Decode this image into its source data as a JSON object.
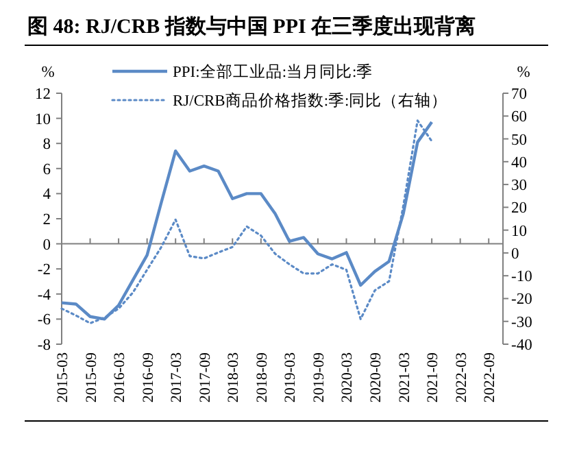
{
  "chart_data": {
    "type": "line",
    "title": "图 48: RJ/CRB 指数与中国 PPI 在三季度出现背离",
    "ylabel": "%",
    "y2label": "%",
    "categories": [
      "2015-03",
      null,
      "2015-09",
      null,
      "2016-03",
      null,
      "2016-09",
      null,
      "2017-03",
      null,
      "2017-09",
      null,
      "2018-03",
      null,
      "2018-09",
      null,
      "2019-03",
      null,
      "2019-09",
      null,
      "2020-03",
      null,
      "2020-09",
      null,
      "2021-03",
      null,
      "2021-09",
      null,
      "2022-03",
      null,
      "2022-09",
      null
    ],
    "series": [
      {
        "name": "PPI:全部工业品:当月同比:季",
        "color": "#5b8ac6",
        "line_style": "solid",
        "values": [
          -4.7,
          -4.8,
          -5.8,
          -6.0,
          -4.9,
          -2.9,
          -0.9,
          3.3,
          7.4,
          5.8,
          6.2,
          5.8,
          3.6,
          4.0,
          4.0,
          2.4,
          0.2,
          0.5,
          -0.8,
          -1.2,
          -0.7,
          -3.3,
          -2.2,
          -1.4,
          2.4,
          8.1,
          9.7,
          null,
          null,
          null,
          null,
          null
        ]
      },
      {
        "name": "RJ/CRB商品价格指数:季:同比（右轴）",
        "color": "#5b8ac6",
        "line_style": "dotted",
        "axis": "y2",
        "values": [
          -24.4,
          -27.4,
          -30.8,
          -28.4,
          -24.4,
          -17.4,
          -7.4,
          2.6,
          14.6,
          -1.4,
          -2.4,
          0.2,
          2.6,
          11.6,
          7.6,
          -0.4,
          -5,
          -9,
          -9,
          -5,
          -7.4,
          -29,
          -16.4,
          -12.4,
          20.6,
          58,
          49,
          null,
          null,
          null,
          null,
          null
        ]
      }
    ],
    "ylim": [
      -8,
      12
    ],
    "yticks": [
      -8,
      -6,
      -4,
      -2,
      0,
      2,
      4,
      6,
      8,
      10,
      12
    ],
    "y2lim": [
      -40,
      70
    ],
    "y2ticks": [
      -40,
      -30,
      -20,
      -10,
      0,
      10,
      20,
      30,
      40,
      50,
      60,
      70
    ],
    "legend": "top left"
  }
}
